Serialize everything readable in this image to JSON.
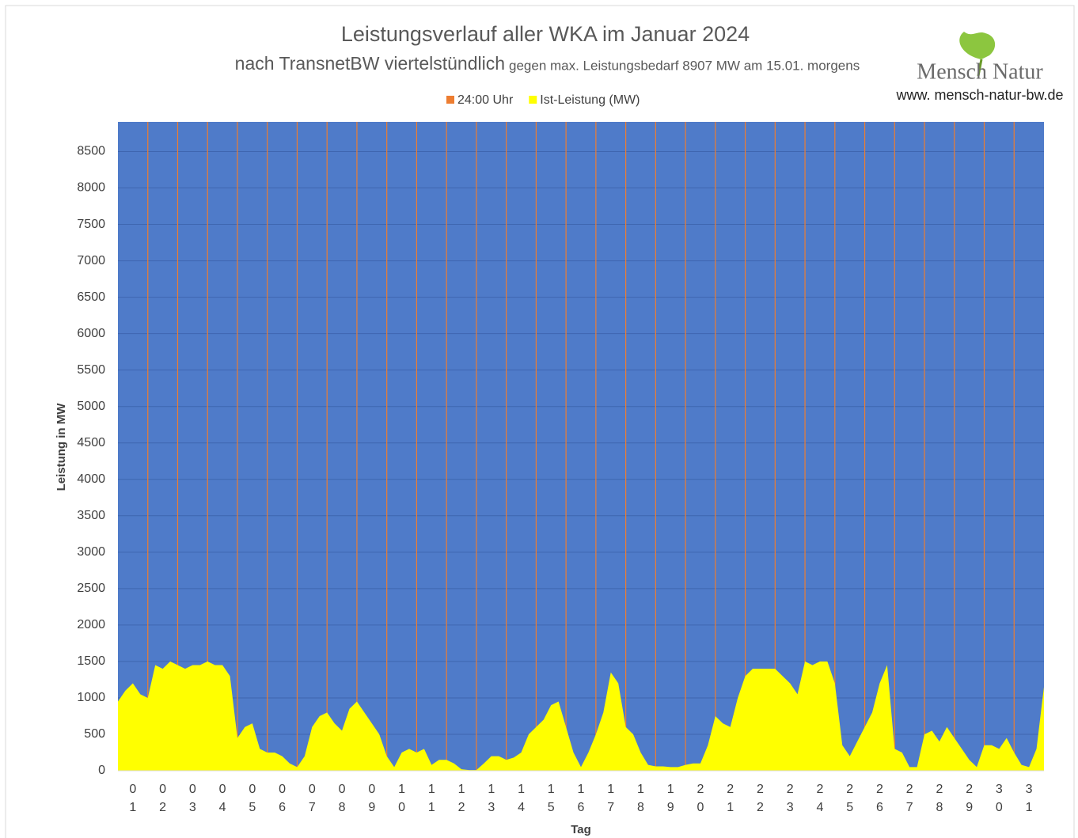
{
  "chart_data": {
    "type": "area",
    "title": "Leistungsverlauf aller WKA im Januar 2024",
    "subtitle": "nach TransnetBW viertelstündlich",
    "subtitle_note": "gegen max. Leistungsbedarf 8907 MW am 15.01.  morgens",
    "brand": "Mensch Natur",
    "website": "www. mensch-natur-bw.de",
    "y_label": "Leistung in MW",
    "x_label": "Tag",
    "categories": [
      "01",
      "02",
      "03",
      "04",
      "05",
      "06",
      "07",
      "08",
      "09",
      "10",
      "11",
      "12",
      "13",
      "14",
      "15",
      "16",
      "17",
      "18",
      "19",
      "20",
      "21",
      "22",
      "23",
      "24",
      "25",
      "26",
      "27",
      "28",
      "29",
      "30",
      "31"
    ],
    "xlim": [
      0,
      31
    ],
    "ylim": [
      0,
      8907
    ],
    "yticks": [
      0,
      500,
      1000,
      1500,
      2000,
      2500,
      3000,
      3500,
      4000,
      4500,
      5000,
      5500,
      6000,
      6500,
      7000,
      7500,
      8000,
      8500
    ],
    "grid": true,
    "legend": "top",
    "series": [
      {
        "name": "24:00 Uhr",
        "color": "#ed7d31",
        "mark": "vline",
        "x": [
          1,
          2,
          3,
          4,
          5,
          6,
          7,
          8,
          9,
          10,
          11,
          12,
          13,
          14,
          15,
          16,
          17,
          18,
          19,
          20,
          21,
          22,
          23,
          24,
          25,
          26,
          27,
          28,
          29,
          30
        ],
        "values": [
          8907,
          8907,
          8907,
          8907,
          8907,
          8907,
          8907,
          8907,
          8907,
          8907,
          8907,
          8907,
          8907,
          8907,
          8907,
          8907,
          8907,
          8907,
          8907,
          8907,
          8907,
          8907,
          8907,
          8907,
          8907,
          8907,
          8907,
          8907,
          8907,
          8907
        ]
      },
      {
        "name": "Ist-Leistung (MW)",
        "color": "#ffff00",
        "mark": "area",
        "x": [
          0,
          0.25,
          0.5,
          0.75,
          1,
          1.25,
          1.5,
          1.75,
          2,
          2.25,
          2.5,
          2.75,
          3,
          3.25,
          3.5,
          3.75,
          4,
          4.25,
          4.5,
          4.75,
          5,
          5.25,
          5.5,
          5.75,
          6,
          6.25,
          6.5,
          6.75,
          7,
          7.25,
          7.5,
          7.75,
          8,
          8.25,
          8.5,
          8.75,
          9,
          9.25,
          9.5,
          9.75,
          10,
          10.25,
          10.5,
          10.75,
          11,
          11.25,
          11.5,
          11.75,
          12,
          12.25,
          12.5,
          12.75,
          13,
          13.25,
          13.5,
          13.75,
          14,
          14.25,
          14.5,
          14.75,
          15,
          15.25,
          15.5,
          15.75,
          16,
          16.25,
          16.5,
          16.75,
          17,
          17.25,
          17.5,
          17.75,
          18,
          18.25,
          18.5,
          18.75,
          19,
          19.25,
          19.5,
          19.75,
          20,
          20.25,
          20.5,
          20.75,
          21,
          21.25,
          21.5,
          21.75,
          22,
          22.25,
          22.5,
          22.75,
          23,
          23.25,
          23.5,
          23.75,
          24,
          24.25,
          24.5,
          24.75,
          25,
          25.25,
          25.5,
          25.75,
          26,
          26.25,
          26.5,
          26.75,
          27,
          27.25,
          27.5,
          27.75,
          28,
          28.25,
          28.5,
          28.75,
          29,
          29.25,
          29.5,
          29.75,
          30,
          30.25,
          30.5,
          30.75,
          31
        ],
        "values": [
          950,
          1100,
          1200,
          1050,
          1000,
          1450,
          1400,
          1500,
          1450,
          1400,
          1450,
          1450,
          1500,
          1450,
          1450,
          1300,
          450,
          600,
          650,
          300,
          250,
          250,
          200,
          100,
          50,
          200,
          600,
          750,
          800,
          650,
          550,
          850,
          950,
          800,
          650,
          500,
          200,
          50,
          250,
          300,
          250,
          300,
          80,
          150,
          150,
          100,
          20,
          10,
          10,
          100,
          200,
          200,
          150,
          180,
          250,
          500,
          600,
          700,
          900,
          950,
          600,
          250,
          50,
          250,
          500,
          800,
          1350,
          1200,
          600,
          500,
          250,
          80,
          60,
          60,
          50,
          50,
          80,
          100,
          100,
          350,
          750,
          650,
          600,
          1000,
          1300,
          1400,
          1400,
          1400,
          1400,
          1300,
          1200,
          1050,
          1500,
          1450,
          1500,
          1500,
          1200,
          350,
          200,
          400,
          600,
          800,
          1200,
          1450,
          300,
          250,
          50,
          50,
          500,
          550,
          400,
          600,
          450,
          300,
          150,
          50,
          350,
          350,
          300,
          450,
          250,
          80,
          50,
          300,
          1150
        ]
      }
    ]
  }
}
